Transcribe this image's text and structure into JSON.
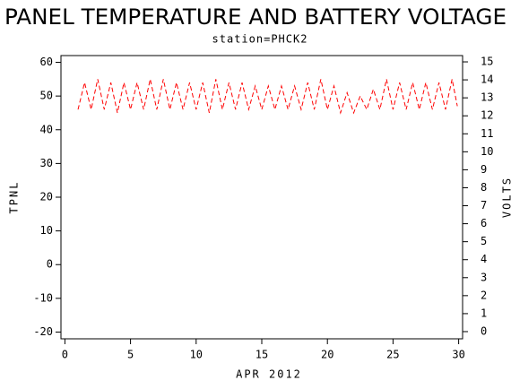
{
  "chart_data": {
    "type": "line",
    "title": "PANEL TEMPERATURE AND BATTERY VOLTAGE",
    "subtitle": "station=PHCK2",
    "xlabel": "APR 2012",
    "ylabel": "TPNL",
    "y2label": "VOLTS",
    "x": [
      1,
      1.5,
      2,
      2.5,
      3,
      3.5,
      4,
      4.5,
      5,
      5.5,
      6,
      6.5,
      7,
      7.5,
      8,
      8.5,
      9,
      9.5,
      10,
      10.5,
      11,
      11.5,
      12,
      12.5,
      13,
      13.5,
      14,
      14.5,
      15,
      15.5,
      16,
      16.5,
      17,
      17.5,
      18,
      18.5,
      19,
      19.5,
      20,
      20.5,
      21,
      21.5,
      22,
      22.5,
      23,
      23.5,
      24,
      24.5,
      25,
      25.5,
      26,
      26.5,
      27,
      27.5,
      28,
      28.5,
      29,
      29.5,
      29.9
    ],
    "series": [
      {
        "name": "TPNL",
        "color": "#ff0000",
        "values": [
          46,
          54,
          46,
          55,
          46,
          54,
          45,
          54,
          46,
          54,
          46,
          55,
          46,
          55,
          46,
          54,
          46,
          54,
          46,
          54,
          45,
          55,
          46,
          54,
          46,
          54,
          46,
          53,
          46,
          53,
          46,
          53,
          46,
          53,
          46,
          54,
          46,
          55,
          46,
          53,
          45,
          51,
          45,
          50,
          46,
          52,
          46,
          55,
          46,
          54,
          46,
          54,
          46,
          54,
          46,
          54,
          46,
          55,
          47
        ]
      }
    ],
    "xlim": [
      -0.3,
      30.3
    ],
    "xticks": [
      0,
      5,
      10,
      15,
      20,
      25,
      30
    ],
    "ylim": [
      -22,
      62
    ],
    "yticks": [
      -20,
      -10,
      0,
      10,
      20,
      30,
      40,
      50,
      60
    ],
    "y2lim": [
      -0.4,
      15.35
    ],
    "y2ticks": [
      0,
      1,
      2,
      3,
      4,
      5,
      6,
      7,
      8,
      9,
      10,
      11,
      12,
      13,
      14,
      15
    ]
  }
}
